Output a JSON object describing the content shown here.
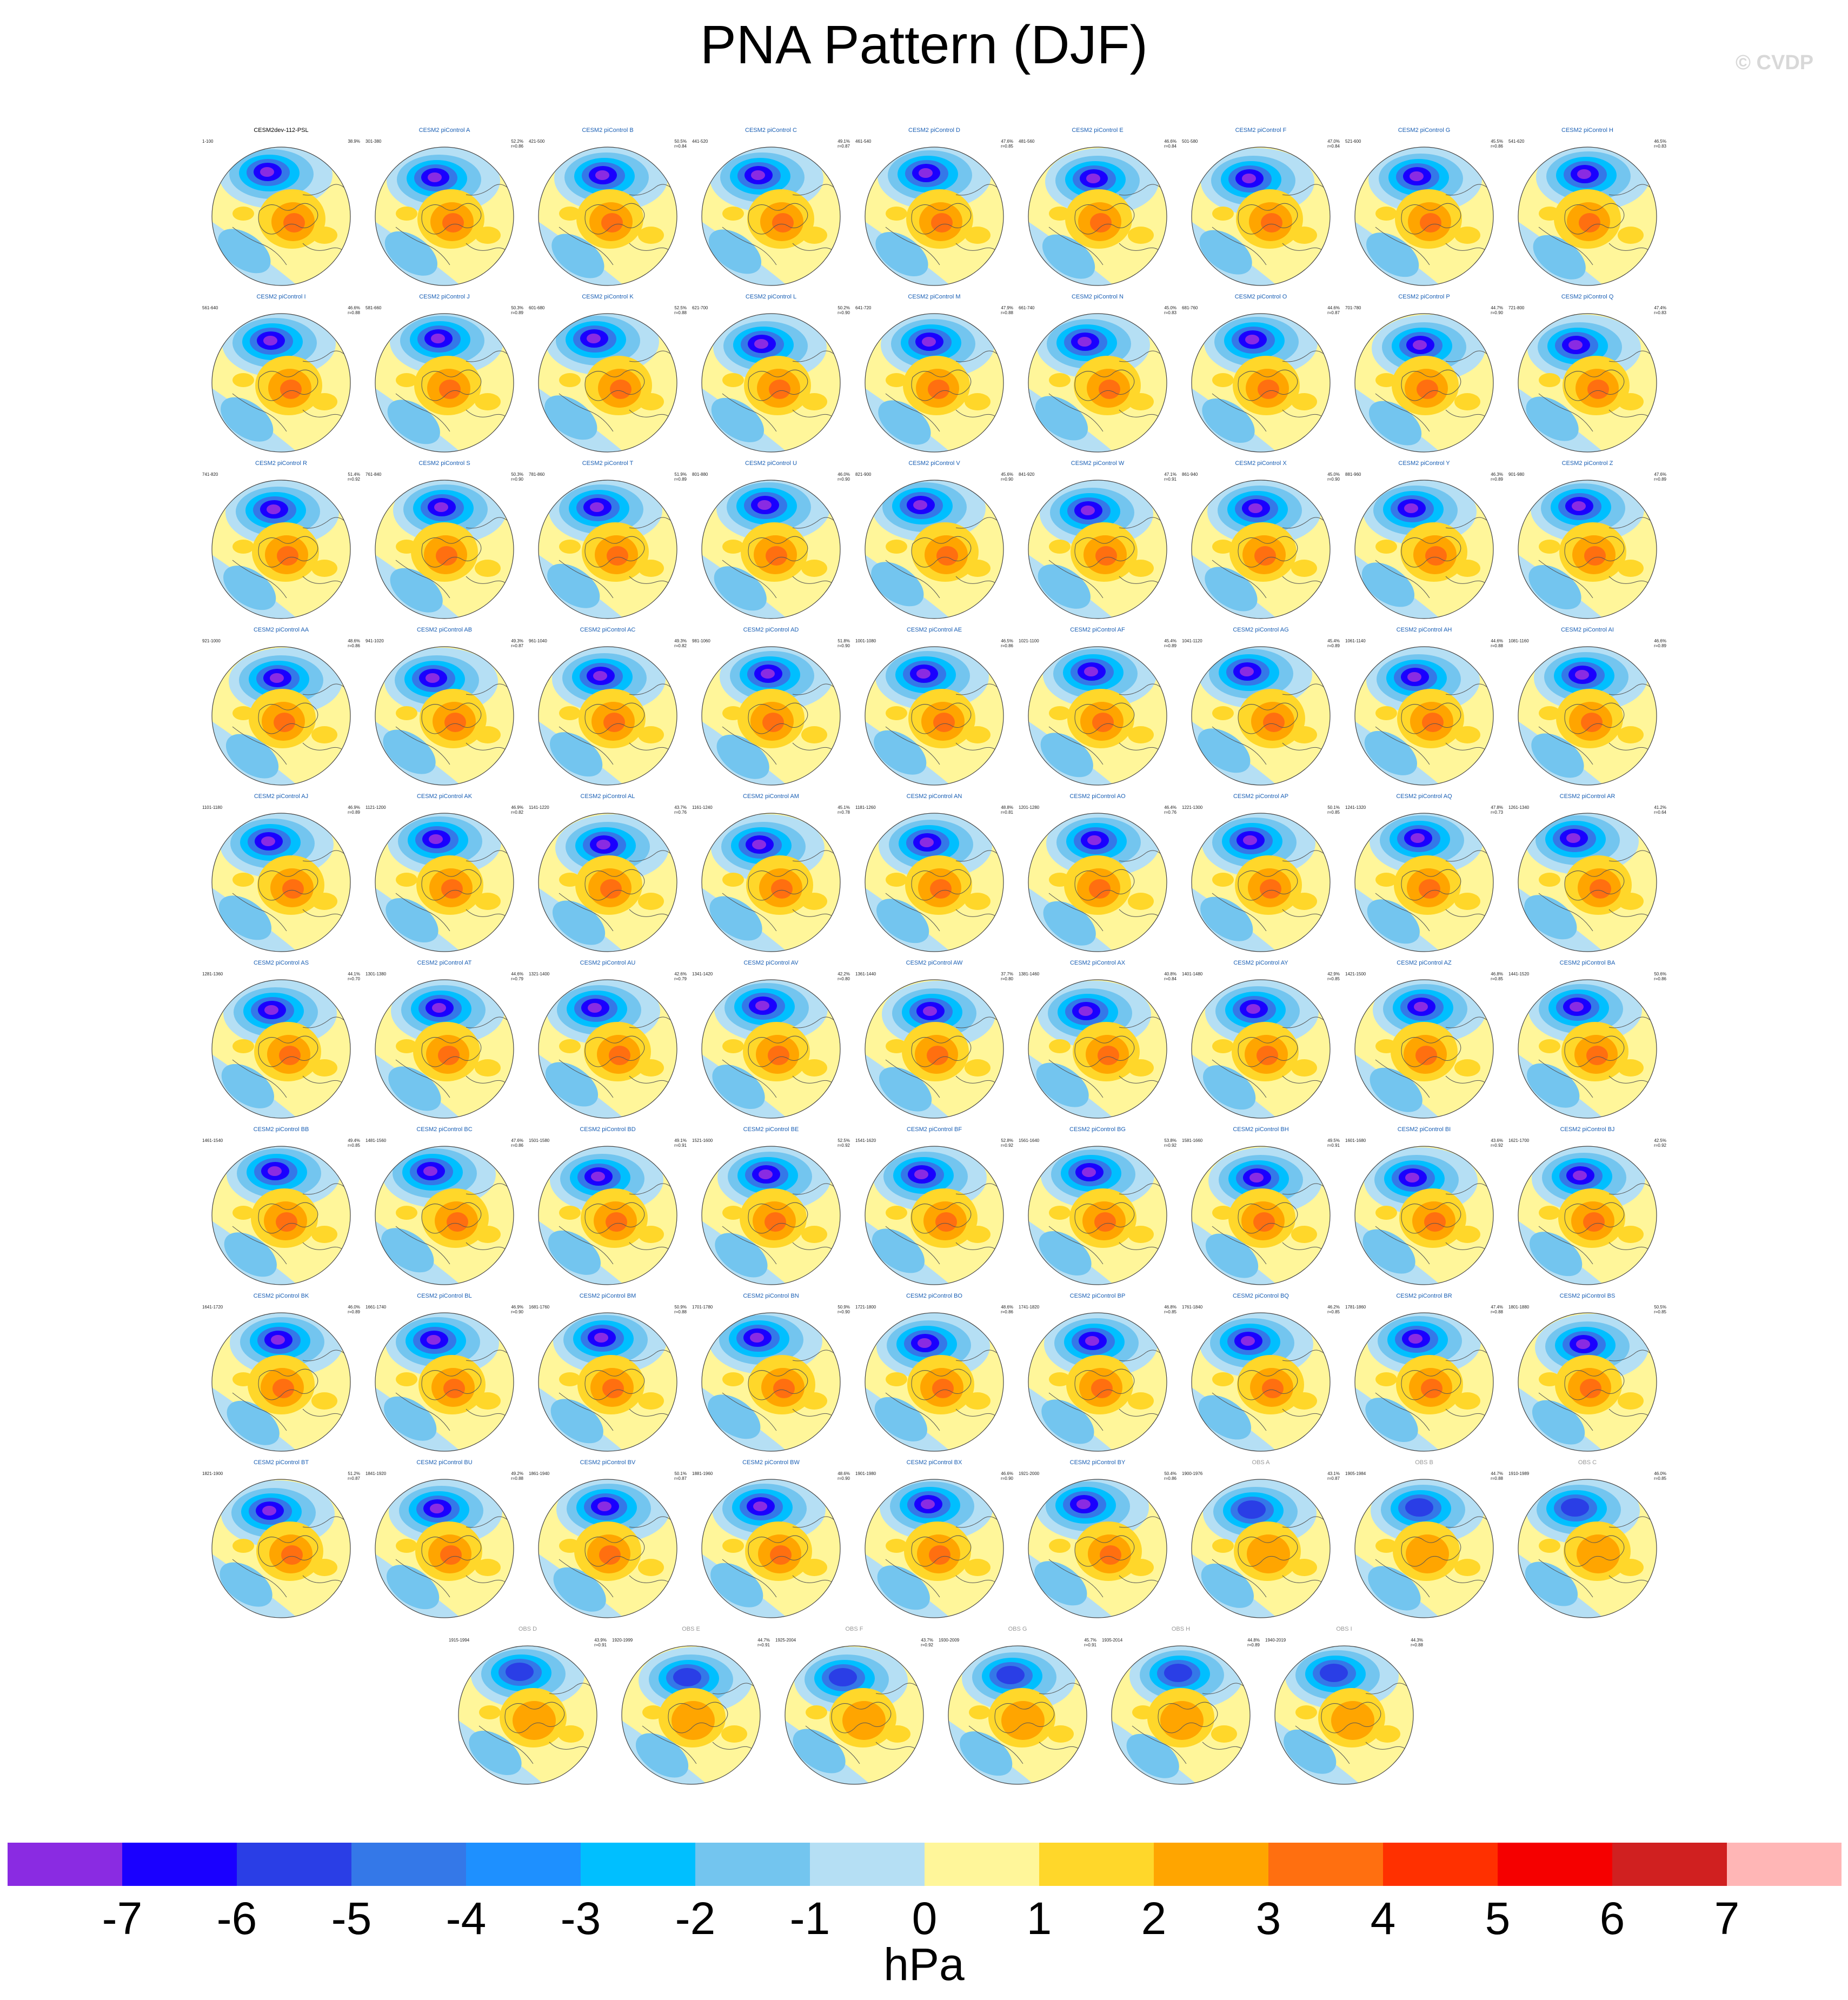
{
  "title": "PNA Pattern (DJF)",
  "watermark": "© CVDP",
  "chart_data": {
    "type": "heatmap",
    "title": "PNA Pattern (DJF)",
    "units": "hPa",
    "colorbar": {
      "tick_labels": [
        "-7",
        "-6",
        "-5",
        "-4",
        "-3",
        "-2",
        "-1",
        "0",
        "1",
        "2",
        "3",
        "4",
        "5",
        "6",
        "7"
      ],
      "colors": [
        "#8a2be2",
        "#1a00ff",
        "#2a3ee6",
        "#3478e8",
        "#1e90ff",
        "#00bfff",
        "#73c5ef",
        "#b5dff4",
        "#fff69a",
        "#ffd72a",
        "#ffa500",
        "#ff6f10",
        "#ff3000",
        "#f50000",
        "#d02020",
        "#ffb6b6"
      ]
    },
    "panels": [
      {
        "title": "CESM2dev-112-PSL",
        "kind": "first",
        "years": "1-100",
        "pct": "38.9%",
        "r": ""
      },
      {
        "title": "CESM2 piControl A",
        "kind": "model",
        "years": "301-380",
        "pct": "52.2%",
        "r": "r=0.86"
      },
      {
        "title": "CESM2 piControl B",
        "kind": "model",
        "years": "421-500",
        "pct": "50.5%",
        "r": "r=0.84"
      },
      {
        "title": "CESM2 piControl C",
        "kind": "model",
        "years": "441-520",
        "pct": "49.1%",
        "r": "r=0.87"
      },
      {
        "title": "CESM2 piControl D",
        "kind": "model",
        "years": "461-540",
        "pct": "47.6%",
        "r": "r=0.85"
      },
      {
        "title": "CESM2 piControl E",
        "kind": "model",
        "years": "481-560",
        "pct": "46.6%",
        "r": "r=0.84"
      },
      {
        "title": "CESM2 piControl F",
        "kind": "model",
        "years": "501-580",
        "pct": "47.0%",
        "r": "r=0.84"
      },
      {
        "title": "CESM2 piControl G",
        "kind": "model",
        "years": "521-600",
        "pct": "45.5%",
        "r": "r=0.86"
      },
      {
        "title": "CESM2 piControl H",
        "kind": "model",
        "years": "541-620",
        "pct": "46.5%",
        "r": "r=0.83"
      },
      {
        "title": "CESM2 piControl I",
        "kind": "model",
        "years": "561-640",
        "pct": "46.6%",
        "r": "r=0.88"
      },
      {
        "title": "CESM2 piControl J",
        "kind": "model",
        "years": "581-660",
        "pct": "50.3%",
        "r": "r=0.89"
      },
      {
        "title": "CESM2 piControl K",
        "kind": "model",
        "years": "601-680",
        "pct": "52.5%",
        "r": "r=0.88"
      },
      {
        "title": "CESM2 piControl L",
        "kind": "model",
        "years": "621-700",
        "pct": "50.2%",
        "r": "r=0.90"
      },
      {
        "title": "CESM2 piControl M",
        "kind": "model",
        "years": "641-720",
        "pct": "47.9%",
        "r": "r=0.88"
      },
      {
        "title": "CESM2 piControl N",
        "kind": "model",
        "years": "661-740",
        "pct": "45.0%",
        "r": "r=0.83"
      },
      {
        "title": "CESM2 piControl O",
        "kind": "model",
        "years": "681-760",
        "pct": "44.6%",
        "r": "r=0.87"
      },
      {
        "title": "CESM2 piControl P",
        "kind": "model",
        "years": "701-780",
        "pct": "44.7%",
        "r": "r=0.90"
      },
      {
        "title": "CESM2 piControl Q",
        "kind": "model",
        "years": "721-800",
        "pct": "47.4%",
        "r": "r=0.83"
      },
      {
        "title": "CESM2 piControl R",
        "kind": "model",
        "years": "741-820",
        "pct": "51.4%",
        "r": "r=0.92"
      },
      {
        "title": "CESM2 piControl S",
        "kind": "model",
        "years": "761-840",
        "pct": "50.3%",
        "r": "r=0.90"
      },
      {
        "title": "CESM2 piControl T",
        "kind": "model",
        "years": "781-860",
        "pct": "51.9%",
        "r": "r=0.89"
      },
      {
        "title": "CESM2 piControl U",
        "kind": "model",
        "years": "801-880",
        "pct": "46.0%",
        "r": "r=0.90"
      },
      {
        "title": "CESM2 piControl V",
        "kind": "model",
        "years": "821-900",
        "pct": "45.6%",
        "r": "r=0.90"
      },
      {
        "title": "CESM2 piControl W",
        "kind": "model",
        "years": "841-920",
        "pct": "47.1%",
        "r": "r=0.91"
      },
      {
        "title": "CESM2 piControl X",
        "kind": "model",
        "years": "861-940",
        "pct": "45.0%",
        "r": "r=0.90"
      },
      {
        "title": "CESM2 piControl Y",
        "kind": "model",
        "years": "881-960",
        "pct": "46.3%",
        "r": "r=0.89"
      },
      {
        "title": "CESM2 piControl Z",
        "kind": "model",
        "years": "901-980",
        "pct": "47.6%",
        "r": "r=0.89"
      },
      {
        "title": "CESM2 piControl AA",
        "kind": "model",
        "years": "921-1000",
        "pct": "48.6%",
        "r": "r=0.86"
      },
      {
        "title": "CESM2 piControl AB",
        "kind": "model",
        "years": "941-1020",
        "pct": "49.3%",
        "r": "r=0.87"
      },
      {
        "title": "CESM2 piControl AC",
        "kind": "model",
        "years": "961-1040",
        "pct": "49.3%",
        "r": "r=0.82"
      },
      {
        "title": "CESM2 piControl AD",
        "kind": "model",
        "years": "981-1060",
        "pct": "51.8%",
        "r": "r=0.90"
      },
      {
        "title": "CESM2 piControl AE",
        "kind": "model",
        "years": "1001-1080",
        "pct": "46.5%",
        "r": "r=0.86"
      },
      {
        "title": "CESM2 piControl AF",
        "kind": "model",
        "years": "1021-1100",
        "pct": "45.4%",
        "r": "r=0.89"
      },
      {
        "title": "CESM2 piControl AG",
        "kind": "model",
        "years": "1041-1120",
        "pct": "45.4%",
        "r": "r=0.89"
      },
      {
        "title": "CESM2 piControl AH",
        "kind": "model",
        "years": "1061-1140",
        "pct": "44.6%",
        "r": "r=0.88"
      },
      {
        "title": "CESM2 piControl AI",
        "kind": "model",
        "years": "1081-1160",
        "pct": "46.6%",
        "r": "r=0.89"
      },
      {
        "title": "CESM2 piControl AJ",
        "kind": "model",
        "years": "1101-1180",
        "pct": "46.9%",
        "r": "r=0.89"
      },
      {
        "title": "CESM2 piControl AK",
        "kind": "model",
        "years": "1121-1200",
        "pct": "46.9%",
        "r": "r=0.82"
      },
      {
        "title": "CESM2 piControl AL",
        "kind": "model",
        "years": "1141-1220",
        "pct": "43.7%",
        "r": "r=0.76"
      },
      {
        "title": "CESM2 piControl AM",
        "kind": "model",
        "years": "1161-1240",
        "pct": "45.1%",
        "r": "r=0.78"
      },
      {
        "title": "CESM2 piControl AN",
        "kind": "model",
        "years": "1181-1260",
        "pct": "48.8%",
        "r": "r=0.81"
      },
      {
        "title": "CESM2 piControl AO",
        "kind": "model",
        "years": "1201-1280",
        "pct": "46.4%",
        "r": "r=0.76"
      },
      {
        "title": "CESM2 piControl AP",
        "kind": "model",
        "years": "1221-1300",
        "pct": "50.1%",
        "r": "r=0.85"
      },
      {
        "title": "CESM2 piControl AQ",
        "kind": "model",
        "years": "1241-1320",
        "pct": "47.8%",
        "r": "r=0.73"
      },
      {
        "title": "CESM2 piControl AR",
        "kind": "model",
        "years": "1261-1340",
        "pct": "41.2%",
        "r": "r=0.64"
      },
      {
        "title": "CESM2 piControl AS",
        "kind": "model",
        "years": "1281-1360",
        "pct": "44.1%",
        "r": "r=0.70"
      },
      {
        "title": "CESM2 piControl AT",
        "kind": "model",
        "years": "1301-1380",
        "pct": "44.6%",
        "r": "r=0.79"
      },
      {
        "title": "CESM2 piControl AU",
        "kind": "model",
        "years": "1321-1400",
        "pct": "42.6%",
        "r": "r=0.79"
      },
      {
        "title": "CESM2 piControl AV",
        "kind": "model",
        "years": "1341-1420",
        "pct": "42.2%",
        "r": "r=0.80"
      },
      {
        "title": "CESM2 piControl AW",
        "kind": "model",
        "years": "1361-1440",
        "pct": "37.7%",
        "r": "r=0.80"
      },
      {
        "title": "CESM2 piControl AX",
        "kind": "model",
        "years": "1381-1460",
        "pct": "40.8%",
        "r": "r=0.84"
      },
      {
        "title": "CESM2 piControl AY",
        "kind": "model",
        "years": "1401-1480",
        "pct": "42.9%",
        "r": "r=0.85"
      },
      {
        "title": "CESM2 piControl AZ",
        "kind": "model",
        "years": "1421-1500",
        "pct": "46.8%",
        "r": "r=0.85"
      },
      {
        "title": "CESM2 piControl BA",
        "kind": "model",
        "years": "1441-1520",
        "pct": "50.6%",
        "r": "r=0.86"
      },
      {
        "title": "CESM2 piControl BB",
        "kind": "model",
        "years": "1461-1540",
        "pct": "49.4%",
        "r": "r=0.85"
      },
      {
        "title": "CESM2 piControl BC",
        "kind": "model",
        "years": "1481-1560",
        "pct": "47.6%",
        "r": "r=0.86"
      },
      {
        "title": "CESM2 piControl BD",
        "kind": "model",
        "years": "1501-1580",
        "pct": "49.1%",
        "r": "r=0.91"
      },
      {
        "title": "CESM2 piControl BE",
        "kind": "model",
        "years": "1521-1600",
        "pct": "52.5%",
        "r": "r=0.92"
      },
      {
        "title": "CESM2 piControl BF",
        "kind": "model",
        "years": "1541-1620",
        "pct": "52.8%",
        "r": "r=0.92"
      },
      {
        "title": "CESM2 piControl BG",
        "kind": "model",
        "years": "1561-1640",
        "pct": "53.8%",
        "r": "r=0.92"
      },
      {
        "title": "CESM2 piControl BH",
        "kind": "model",
        "years": "1581-1660",
        "pct": "49.5%",
        "r": "r=0.91"
      },
      {
        "title": "CESM2 piControl BI",
        "kind": "model",
        "years": "1601-1680",
        "pct": "43.6%",
        "r": "r=0.92"
      },
      {
        "title": "CESM2 piControl BJ",
        "kind": "model",
        "years": "1621-1700",
        "pct": "42.5%",
        "r": "r=0.92"
      },
      {
        "title": "CESM2 piControl BK",
        "kind": "model",
        "years": "1641-1720",
        "pct": "46.0%",
        "r": "r=0.89"
      },
      {
        "title": "CESM2 piControl BL",
        "kind": "model",
        "years": "1661-1740",
        "pct": "46.9%",
        "r": "r=0.90"
      },
      {
        "title": "CESM2 piControl BM",
        "kind": "model",
        "years": "1681-1760",
        "pct": "50.9%",
        "r": "r=0.88"
      },
      {
        "title": "CESM2 piControl BN",
        "kind": "model",
        "years": "1701-1780",
        "pct": "50.9%",
        "r": "r=0.90"
      },
      {
        "title": "CESM2 piControl BO",
        "kind": "model",
        "years": "1721-1800",
        "pct": "48.6%",
        "r": "r=0.86"
      },
      {
        "title": "CESM2 piControl BP",
        "kind": "model",
        "years": "1741-1820",
        "pct": "46.8%",
        "r": "r=0.85"
      },
      {
        "title": "CESM2 piControl BQ",
        "kind": "model",
        "years": "1761-1840",
        "pct": "46.2%",
        "r": "r=0.85"
      },
      {
        "title": "CESM2 piControl BR",
        "kind": "model",
        "years": "1781-1860",
        "pct": "47.4%",
        "r": "r=0.88"
      },
      {
        "title": "CESM2 piControl BS",
        "kind": "model",
        "years": "1801-1880",
        "pct": "50.5%",
        "r": "r=0.85"
      },
      {
        "title": "CESM2 piControl BT",
        "kind": "model",
        "years": "1821-1900",
        "pct": "51.2%",
        "r": "r=0.87"
      },
      {
        "title": "CESM2 piControl BU",
        "kind": "model",
        "years": "1841-1920",
        "pct": "49.2%",
        "r": "r=0.88"
      },
      {
        "title": "CESM2 piControl BV",
        "kind": "model",
        "years": "1861-1940",
        "pct": "50.1%",
        "r": "r=0.87"
      },
      {
        "title": "CESM2 piControl BW",
        "kind": "model",
        "years": "1881-1960",
        "pct": "48.6%",
        "r": "r=0.90"
      },
      {
        "title": "CESM2 piControl BX",
        "kind": "model",
        "years": "1901-1980",
        "pct": "46.6%",
        "r": "r=0.90"
      },
      {
        "title": "CESM2 piControl BY",
        "kind": "model",
        "years": "1921-2000",
        "pct": "50.4%",
        "r": "r=0.86"
      },
      {
        "title": "OBS A",
        "kind": "obs",
        "years": "1900-1976",
        "pct": "43.1%",
        "r": "r=0.87"
      },
      {
        "title": "OBS B",
        "kind": "obs",
        "years": "1905-1984",
        "pct": "44.7%",
        "r": "r=0.88"
      },
      {
        "title": "OBS C",
        "kind": "obs",
        "years": "1910-1989",
        "pct": "46.0%",
        "r": "r=0.85"
      },
      {
        "title": "OBS D",
        "kind": "obs",
        "years": "1915-1994",
        "pct": "43.9%",
        "r": "r=0.91"
      },
      {
        "title": "OBS E",
        "kind": "obs",
        "years": "1920-1999",
        "pct": "44.7%",
        "r": "r=0.91"
      },
      {
        "title": "OBS F",
        "kind": "obs",
        "years": "1925-2004",
        "pct": "43.7%",
        "r": "r=0.92"
      },
      {
        "title": "OBS G",
        "kind": "obs",
        "years": "1930-2009",
        "pct": "45.7%",
        "r": "r=0.91"
      },
      {
        "title": "OBS H",
        "kind": "obs",
        "years": "1935-2014",
        "pct": "44.8%",
        "r": "r=0.89"
      },
      {
        "title": "OBS I",
        "kind": "obs",
        "years": "1940-2019",
        "pct": "44.3%",
        "r": "r=0.88"
      }
    ]
  }
}
